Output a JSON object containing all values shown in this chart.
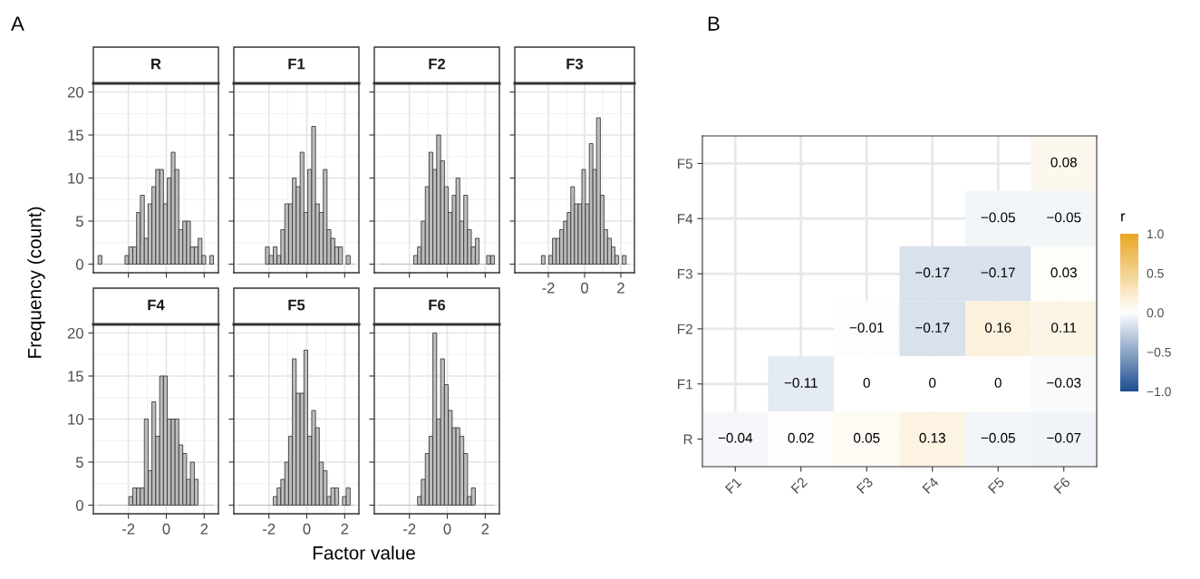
{
  "chart_data": [
    {
      "type": "histogram",
      "title": "R",
      "color": "#bdbdbd",
      "ylabel": "Frequency (count)",
      "annotations": [
        "A"
      ],
      "grid": true,
      "tick_labels": "y",
      "xlim": [
        -3.85,
        2.75
      ],
      "ylim": [
        -1,
        21
      ],
      "xticks": [
        -2,
        0,
        2
      ],
      "yticks": [
        0,
        5,
        10,
        15,
        20
      ],
      "bins": [
        -3.6,
        -3.4,
        -3.19,
        -2.99,
        -2.79,
        -2.59,
        -2.38,
        -2.18,
        -1.98,
        -1.77,
        -1.57,
        -1.37,
        -1.16,
        -0.96,
        -0.76,
        -0.56,
        -0.35,
        -0.15,
        0.05,
        0.26,
        0.46,
        0.66,
        0.87,
        1.07,
        1.27,
        1.48,
        1.68,
        1.88,
        2.08,
        2.29,
        2.49
      ],
      "values": [
        1,
        0,
        0,
        0,
        0,
        0,
        0,
        1,
        2,
        2,
        6,
        8,
        3,
        7,
        9,
        11,
        11,
        7,
        10,
        13,
        11,
        4,
        5,
        5,
        2,
        2,
        3,
        1,
        0,
        1
      ]
    },
    {
      "type": "histogram",
      "title": "F1",
      "color": "#bdbdbd",
      "grid": true,
      "tick_labels": false,
      "xlim": [
        -3.85,
        2.75
      ],
      "ylim": [
        -1,
        21
      ],
      "xticks": [
        -2,
        0,
        2
      ],
      "yticks": [
        0,
        5,
        10,
        15,
        20
      ],
      "bins": [
        -3.6,
        -3.4,
        -3.19,
        -2.99,
        -2.79,
        -2.59,
        -2.38,
        -2.18,
        -1.98,
        -1.77,
        -1.57,
        -1.37,
        -1.16,
        -0.96,
        -0.76,
        -0.56,
        -0.35,
        -0.15,
        0.05,
        0.26,
        0.46,
        0.66,
        0.87,
        1.07,
        1.27,
        1.48,
        1.68,
        1.88,
        2.08,
        2.29,
        2.49
      ],
      "values": [
        0,
        0,
        0,
        0,
        0,
        0,
        0,
        2,
        1,
        2,
        1,
        4,
        7,
        7,
        10,
        9,
        13,
        6,
        11,
        16,
        7,
        6,
        11,
        4,
        3,
        2,
        2,
        0,
        1,
        0
      ]
    },
    {
      "type": "histogram",
      "title": "F2",
      "color": "#bdbdbd",
      "grid": true,
      "tick_labels": false,
      "xlim": [
        -3.85,
        2.75
      ],
      "ylim": [
        -1,
        21
      ],
      "xticks": [
        -2,
        0,
        2
      ],
      "yticks": [
        0,
        5,
        10,
        15,
        20
      ],
      "bins": [
        -3.6,
        -3.4,
        -3.19,
        -2.99,
        -2.79,
        -2.59,
        -2.38,
        -2.18,
        -1.98,
        -1.77,
        -1.57,
        -1.37,
        -1.16,
        -0.96,
        -0.76,
        -0.56,
        -0.35,
        -0.15,
        0.05,
        0.26,
        0.46,
        0.66,
        0.87,
        1.07,
        1.27,
        1.48,
        1.68,
        1.88,
        2.08,
        2.29,
        2.49
      ],
      "values": [
        0,
        0,
        0,
        0,
        0,
        0,
        0,
        0,
        0,
        1,
        2,
        5,
        9,
        13,
        11,
        15,
        12,
        9,
        6,
        8,
        10,
        5,
        8,
        4,
        2,
        3,
        0,
        0,
        1,
        1
      ]
    },
    {
      "type": "histogram",
      "title": "F3",
      "color": "#bdbdbd",
      "grid": true,
      "tick_labels": "x",
      "xlim": [
        -3.85,
        2.75
      ],
      "ylim": [
        -1,
        21
      ],
      "xticks": [
        -2,
        0,
        2
      ],
      "yticks": [
        0,
        5,
        10,
        15,
        20
      ],
      "bins": [
        -3.6,
        -3.4,
        -3.19,
        -2.99,
        -2.79,
        -2.59,
        -2.38,
        -2.18,
        -1.98,
        -1.77,
        -1.57,
        -1.37,
        -1.16,
        -0.96,
        -0.76,
        -0.56,
        -0.35,
        -0.15,
        0.05,
        0.26,
        0.46,
        0.66,
        0.87,
        1.07,
        1.27,
        1.48,
        1.68,
        1.88,
        2.08,
        2.29,
        2.49
      ],
      "values": [
        0,
        0,
        0,
        0,
        0,
        0,
        1,
        0,
        1,
        3,
        3,
        4,
        5,
        6,
        9,
        7,
        7,
        11,
        7,
        14,
        11,
        17,
        8,
        4,
        3,
        2,
        1,
        0,
        1,
        0
      ]
    },
    {
      "type": "histogram",
      "title": "F4",
      "color": "#bdbdbd",
      "grid": true,
      "xlim": [
        -3.85,
        2.75
      ],
      "ylim": [
        -1,
        21
      ],
      "xticks": [
        -2,
        0,
        2
      ],
      "yticks": [
        0,
        5,
        10,
        15,
        20
      ],
      "bins": [
        -3.6,
        -3.4,
        -3.19,
        -2.99,
        -2.79,
        -2.59,
        -2.38,
        -2.18,
        -1.98,
        -1.77,
        -1.57,
        -1.37,
        -1.16,
        -0.96,
        -0.76,
        -0.56,
        -0.35,
        -0.15,
        0.05,
        0.26,
        0.46,
        0.66,
        0.87,
        1.07,
        1.27,
        1.48,
        1.68,
        1.88,
        2.08,
        2.29,
        2.49
      ],
      "values": [
        0,
        0,
        0,
        0,
        0,
        0,
        0,
        0,
        1,
        2,
        2,
        2,
        10,
        4,
        12,
        8,
        15,
        15,
        10,
        10,
        10,
        7,
        6,
        3,
        5,
        3,
        0,
        0,
        0,
        0
      ]
    },
    {
      "type": "histogram",
      "title": "F5",
      "color": "#bdbdbd",
      "xlabel": "Factor value",
      "grid": true,
      "tick_labels": "x",
      "xlim": [
        -3.85,
        2.75
      ],
      "ylim": [
        -1,
        21
      ],
      "xticks": [
        -2,
        0,
        2
      ],
      "yticks": [
        0,
        5,
        10,
        15,
        20
      ],
      "bins": [
        -3.6,
        -3.4,
        -3.19,
        -2.99,
        -2.79,
        -2.59,
        -2.38,
        -2.18,
        -1.98,
        -1.77,
        -1.57,
        -1.37,
        -1.16,
        -0.96,
        -0.76,
        -0.56,
        -0.35,
        -0.15,
        0.05,
        0.26,
        0.46,
        0.66,
        0.87,
        1.07,
        1.27,
        1.48,
        1.68,
        1.88,
        2.08,
        2.29,
        2.49
      ],
      "values": [
        0,
        0,
        0,
        0,
        0,
        0,
        0,
        0,
        0,
        1,
        2,
        3,
        5,
        8,
        17,
        13,
        13,
        18,
        8,
        11,
        9,
        5,
        4,
        1,
        2,
        2,
        0,
        1,
        2,
        0
      ]
    },
    {
      "type": "histogram",
      "title": "F6",
      "color": "#bdbdbd",
      "grid": true,
      "tick_labels": "x",
      "xlim": [
        -3.85,
        2.75
      ],
      "ylim": [
        -1,
        21
      ],
      "xticks": [
        -2,
        0,
        2
      ],
      "yticks": [
        0,
        5,
        10,
        15,
        20
      ],
      "bins": [
        -3.6,
        -3.4,
        -3.19,
        -2.99,
        -2.79,
        -2.59,
        -2.38,
        -2.18,
        -1.98,
        -1.77,
        -1.57,
        -1.37,
        -1.16,
        -0.96,
        -0.76,
        -0.56,
        -0.35,
        -0.15,
        0.05,
        0.26,
        0.46,
        0.66,
        0.87,
        1.07,
        1.27,
        1.48,
        1.68,
        1.88,
        2.08,
        2.29,
        2.49
      ],
      "values": [
        0,
        0,
        0,
        0,
        0,
        0,
        0,
        0,
        0,
        0,
        1,
        3,
        6,
        8,
        20,
        10,
        17,
        14,
        11,
        9,
        9,
        8,
        6,
        1,
        2,
        0,
        0,
        0,
        0,
        0
      ]
    },
    {
      "type": "heatmap",
      "annotations": [
        "B"
      ],
      "clabel": "r",
      "grid": true,
      "data_labels": true,
      "categories": [
        "F1",
        "F2",
        "F3",
        "F4",
        "F5",
        "F6"
      ],
      "y_categories": [
        "F5",
        "F4",
        "F3",
        "F2",
        "F1",
        "R"
      ],
      "cells": [
        [
          null,
          null,
          null,
          null,
          null,
          0.08
        ],
        [
          null,
          null,
          null,
          null,
          -0.05,
          -0.05
        ],
        [
          null,
          null,
          null,
          -0.17,
          -0.17,
          0.03
        ],
        [
          null,
          null,
          -0.01,
          -0.17,
          0.16,
          0.11
        ],
        [
          null,
          -0.11,
          0,
          0,
          0,
          -0.03
        ],
        [
          -0.04,
          0.02,
          0.05,
          0.13,
          -0.05,
          -0.07
        ]
      ],
      "clim": [
        -1,
        1
      ],
      "cticks": [
        {
          "value": -1,
          "label": "−1.0"
        },
        {
          "value": -0.5,
          "label": "−0.5"
        },
        {
          "value": 0,
          "label": "0.0"
        },
        0.5,
        {
          "value": 1,
          "label": "1.0"
        }
      ]
    }
  ]
}
